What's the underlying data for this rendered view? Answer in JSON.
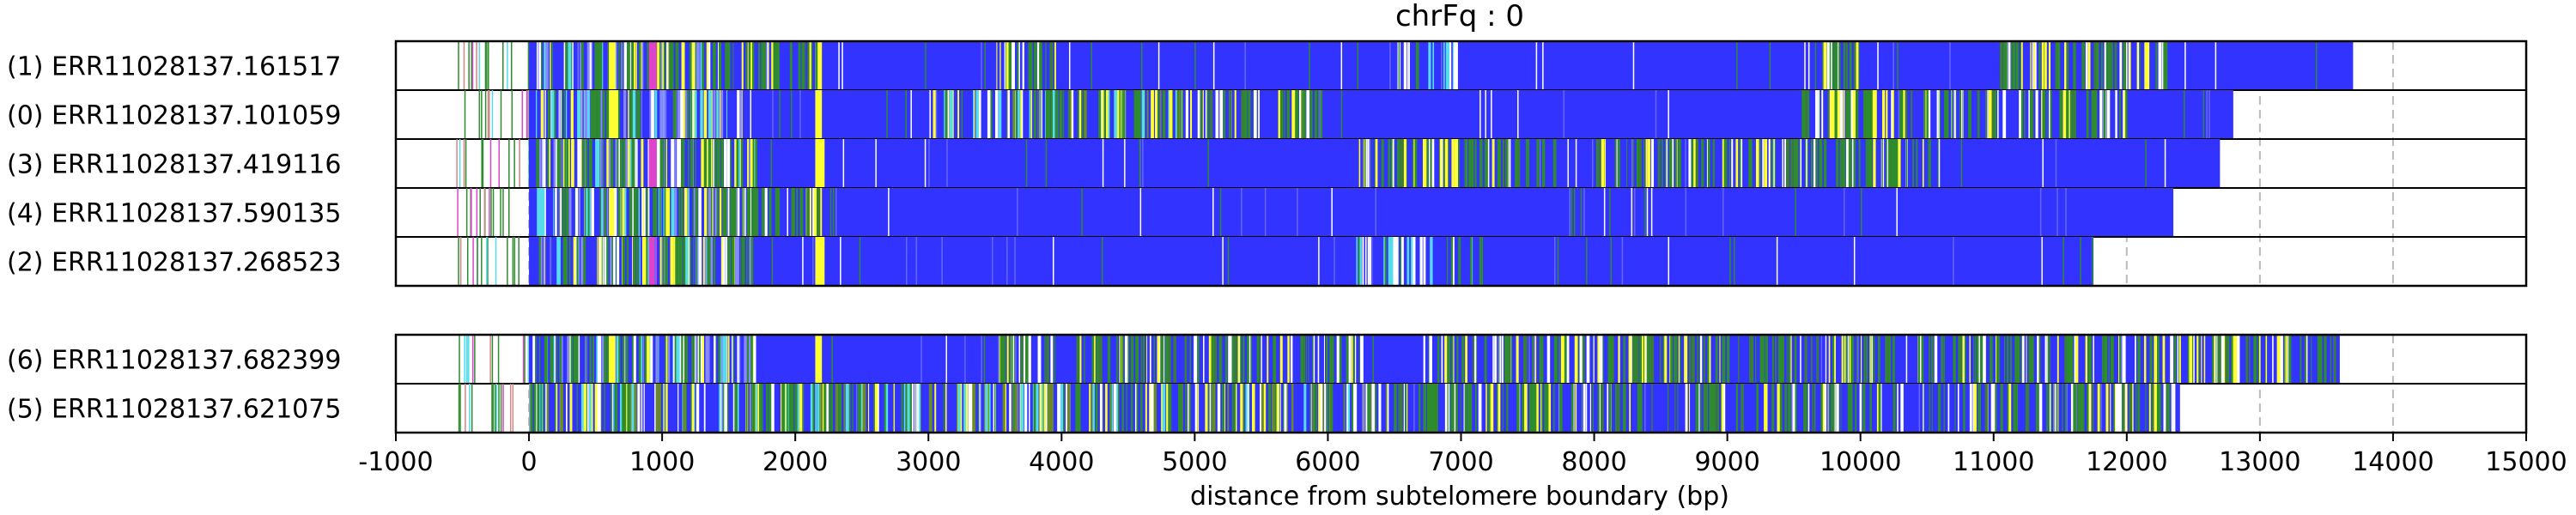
{
  "chart_data": {
    "type": "heatmap",
    "title": "chrFq : 0",
    "xlabel": "distance from subtelomere boundary (bp)",
    "ylabel": "",
    "xlim": [
      -1000,
      15000
    ],
    "xticks": [
      -1000,
      0,
      1000,
      2000,
      3000,
      4000,
      5000,
      6000,
      7000,
      8000,
      9000,
      10000,
      11000,
      12000,
      13000,
      14000,
      15000
    ],
    "grid": "vertical dashed at each 1000 bp",
    "colors": {
      "main": "#3333ff",
      "green": "#2e8b2e",
      "yellow": "#ffff33",
      "white": "#ffffff",
      "magenta": "#dd44cc",
      "cyan": "#55ddee",
      "grid": "#bbbbbb"
    },
    "groups": [
      {
        "tracks": [
          {
            "label": "(1) ERR11028137.161517",
            "start": -550,
            "end": 13700,
            "features": [
              {
                "x": [
                  50,
                  1500
                ],
                "kind": "speckle"
              },
              {
                "x": [
                  900,
                  960
                ],
                "kind": "magenta"
              },
              {
                "x": [
                  600,
                  650
                ],
                "kind": "yellow"
              },
              {
                "x": [
                  2150,
                  2200
                ],
                "kind": "yellow"
              },
              {
                "x": [
                  1500,
                  2200
                ],
                "kind": "green-mix"
              },
              {
                "x": [
                  3500,
                  4000
                ],
                "kind": "green-mix"
              },
              {
                "x": [
                  6500,
                  7000
                ],
                "kind": "white-mix"
              },
              {
                "x": [
                  9650,
                  10000
                ],
                "kind": "green-mix"
              },
              {
                "x": [
                  11000,
                  12300
                ],
                "kind": "green-mix"
              }
            ]
          },
          {
            "label": "(0) ERR11028137.101059",
            "start": -550,
            "end": 12800,
            "features": [
              {
                "x": [
                  50,
                  1600
                ],
                "kind": "speckle"
              },
              {
                "x": [
                  600,
                  650
                ],
                "kind": "yellow"
              },
              {
                "x": [
                  2150,
                  2200
                ],
                "kind": "yellow"
              },
              {
                "x": [
                  3000,
                  5000
                ],
                "kind": "yellow-mix"
              },
              {
                "x": [
                  5000,
                  6000
                ],
                "kind": "green-mix"
              },
              {
                "x": [
                  9500,
                  12000
                ],
                "kind": "green-mix"
              }
            ]
          },
          {
            "label": "(3) ERR11028137.419116",
            "start": -550,
            "end": 12700,
            "features": [
              {
                "x": [
                  50,
                  1700
                ],
                "kind": "speckle"
              },
              {
                "x": [
                  900,
                  960
                ],
                "kind": "magenta"
              },
              {
                "x": [
                  2150,
                  2220
                ],
                "kind": "yellow"
              },
              {
                "x": [
                  6200,
                  7700
                ],
                "kind": "green-mix"
              },
              {
                "x": [
                  8000,
                  10600
                ],
                "kind": "green-mix"
              }
            ]
          },
          {
            "label": "(4) ERR11028137.590135",
            "start": -550,
            "end": 12350,
            "features": [
              {
                "x": [
                  50,
                  1700
                ],
                "kind": "speckle"
              },
              {
                "x": [
                  600,
                  650
                ],
                "kind": "yellow"
              },
              {
                "x": [
                  2150,
                  2200
                ],
                "kind": "yellow"
              },
              {
                "x": [
                  1500,
                  2200
                ],
                "kind": "green-mix"
              }
            ]
          },
          {
            "label": "(2) ERR11028137.268523",
            "start": -550,
            "end": 11750,
            "features": [
              {
                "x": [
                  50,
                  1700
                ],
                "kind": "speckle"
              },
              {
                "x": [
                  900,
                  960
                ],
                "kind": "magenta"
              },
              {
                "x": [
                  2150,
                  2220
                ],
                "kind": "yellow"
              },
              {
                "x": [
                  6200,
                  7200
                ],
                "kind": "white-mix"
              }
            ]
          }
        ]
      },
      {
        "tracks": [
          {
            "label": "(6) ERR11028137.682399",
            "start": -550,
            "end": 13600,
            "features": [
              {
                "x": [
                  0,
                  1700
                ],
                "kind": "speckle"
              },
              {
                "x": [
                  600,
                  650
                ],
                "kind": "yellow"
              },
              {
                "x": [
                  2150,
                  2200
                ],
                "kind": "yellow"
              },
              {
                "x": [
                  3500,
                  6300
                ],
                "kind": "green-mix"
              },
              {
                "x": [
                  6700,
                  11800
                ],
                "kind": "green-mix"
              },
              {
                "x": [
                  11800,
                  13600
                ],
                "kind": "green-mix"
              }
            ]
          },
          {
            "label": "(5) ERR11028137.621075",
            "start": -550,
            "end": 12400,
            "features": [
              {
                "x": [
                  0,
                  6500
                ],
                "kind": "yellow-mix"
              },
              {
                "x": [
                  6500,
                  12400
                ],
                "kind": "green-mix"
              }
            ]
          }
        ]
      }
    ]
  }
}
